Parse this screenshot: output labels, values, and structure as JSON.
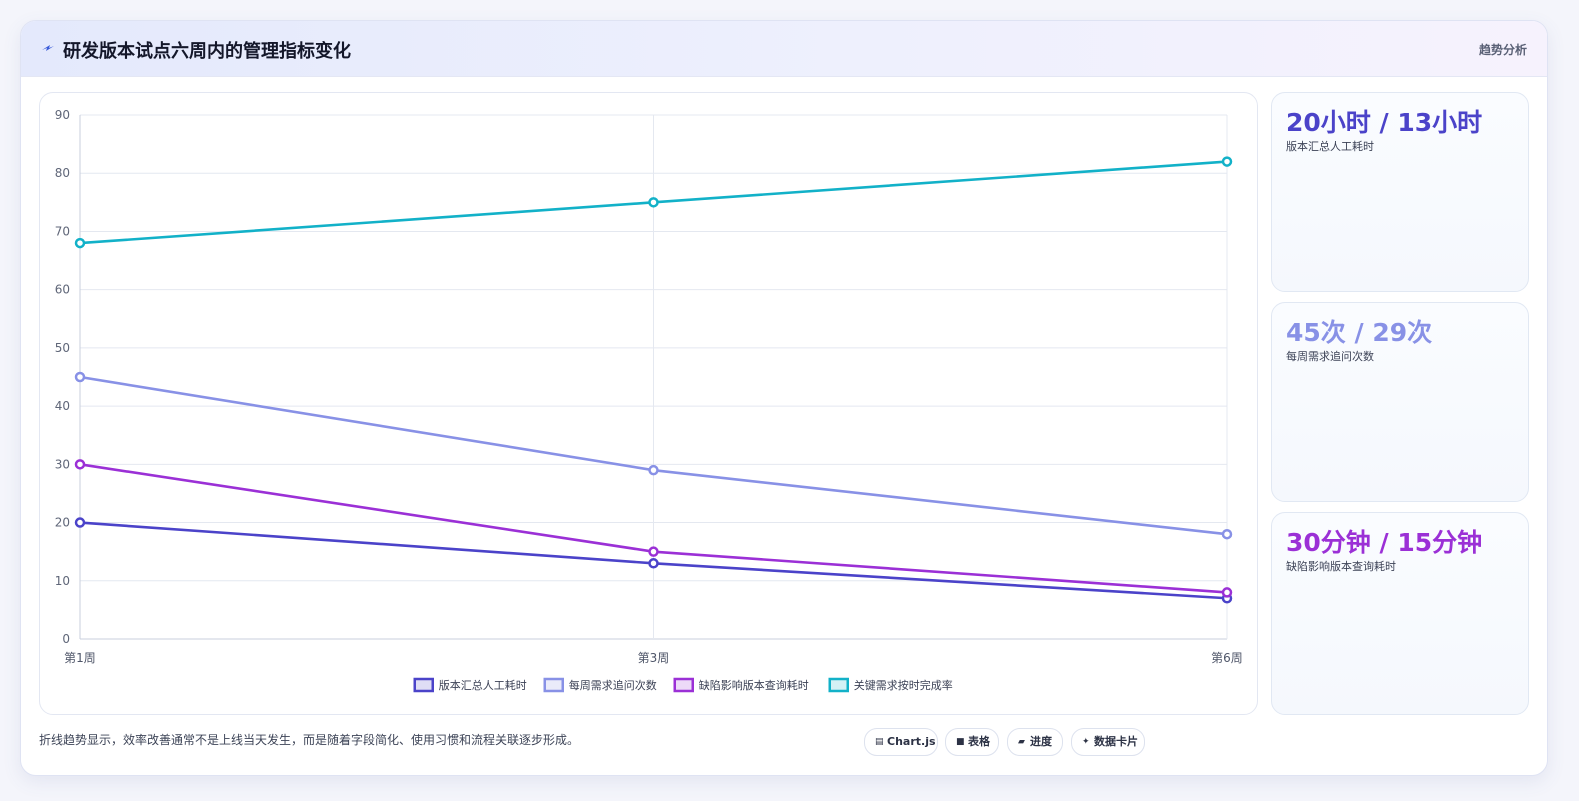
{
  "header": {
    "title": "研发版本试点六周内的管理指标变化",
    "tag": "趋势分析",
    "icon": "lightning-icon"
  },
  "chart_data": {
    "type": "line",
    "x": [
      "第1周",
      "第3周",
      "第6周"
    ],
    "ylim": [
      0,
      90
    ],
    "yticks": [
      0,
      10,
      20,
      30,
      40,
      50,
      60,
      70,
      80,
      90
    ],
    "grid": true,
    "legend_position": "bottom",
    "series": [
      {
        "name": "版本汇总人工耗时",
        "values": [
          20,
          13,
          7
        ],
        "color": "#4b43c9"
      },
      {
        "name": "每周需求追问次数",
        "values": [
          45,
          29,
          18
        ],
        "color": "#8891e6"
      },
      {
        "name": "缺陷影响版本查询耗时",
        "values": [
          30,
          15,
          8
        ],
        "color": "#9b30d6"
      },
      {
        "name": "关键需求按时完成率",
        "values": [
          68,
          75,
          82
        ],
        "color": "#12b1c8"
      }
    ]
  },
  "cards": [
    {
      "value": "20小时 / 13小时",
      "label": "版本汇总人工耗时",
      "color": "#4b43c9"
    },
    {
      "value": "45次 / 29次",
      "label": "每周需求追问次数",
      "color": "#8891e6"
    },
    {
      "value": "30分钟 / 15分钟",
      "label": "缺陷影响版本查询耗时",
      "color": "#9b30d6"
    }
  ],
  "note": "折线趋势显示，效率改善通常不是上线当天发生，而是随着字段简化、使用习惯和流程关联逐步形成。",
  "pills": [
    {
      "icon": "chart-icon",
      "glyph": "▤",
      "label": "Chart.js"
    },
    {
      "icon": "table-icon",
      "glyph": "■",
      "label": "表格"
    },
    {
      "icon": "progress-icon",
      "glyph": "▰",
      "label": "进度"
    },
    {
      "icon": "card-icon",
      "glyph": "✦",
      "label": "数据卡片"
    }
  ]
}
